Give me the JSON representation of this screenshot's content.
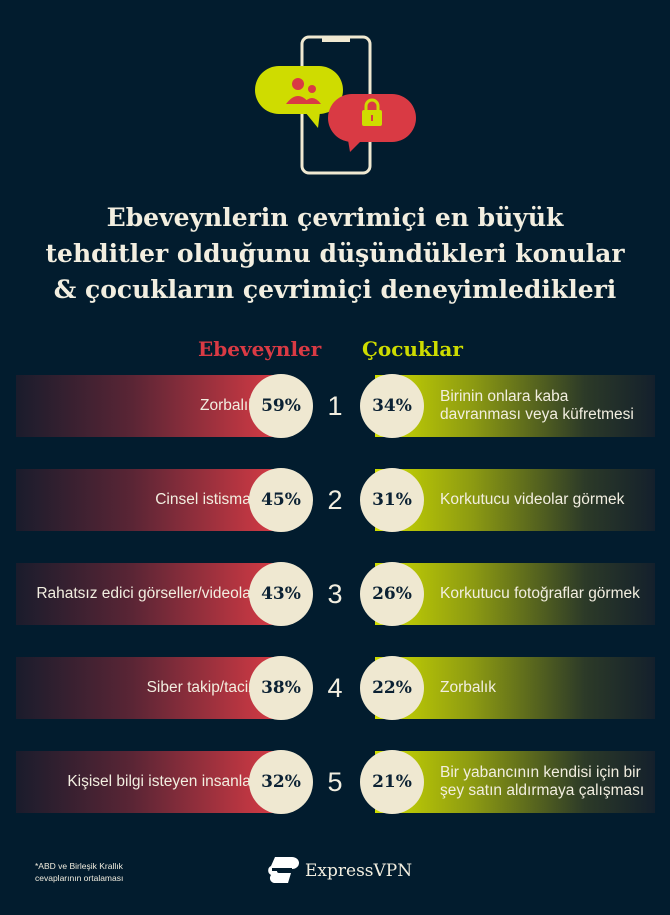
{
  "title": [
    "Ebeveynlerin çevrimiçi en büyük",
    "tehditler olduğunu düşündükleri konular",
    "& çocukların çevrimiçi deneyimledikleri"
  ],
  "columns": {
    "left": "Ebeveynler",
    "right": "Çocuklar"
  },
  "colors": {
    "background": "#021c2e",
    "parents": "#d93a44",
    "children": "#cddc00",
    "circle": "#efe8d1"
  },
  "rows": [
    {
      "rank": "1",
      "parent_label": "Zorbalık",
      "parent_value": "59%",
      "child_value": "34%",
      "child_label": "Birinin onlara kaba davranması veya küfretmesi"
    },
    {
      "rank": "2",
      "parent_label": "Cinsel istismar",
      "parent_value": "45%",
      "child_value": "31%",
      "child_label": "Korkutucu videolar görmek"
    },
    {
      "rank": "3",
      "parent_label": "Rahatsız edici görseller/videolar",
      "parent_value": "43%",
      "child_value": "26%",
      "child_label": "Korkutucu fotoğraflar görmek"
    },
    {
      "rank": "4",
      "parent_label": "Siber takip/taciz",
      "parent_value": "38%",
      "child_value": "22%",
      "child_label": "Zorbalık"
    },
    {
      "rank": "5",
      "parent_label": "Kişisel bilgi isteyen insanlar",
      "parent_value": "32%",
      "child_value": "21%",
      "child_label": "Bir yabancının kendisi için bir şey satın aldırmaya çalışması"
    }
  ],
  "footnote": [
    "*ABD ve Birleşik Krallık",
    "cevaplarının ortalaması"
  ],
  "brand": "ExpressVPN",
  "icons": [
    "phone-icon",
    "people-chat-bubble-icon",
    "lock-chat-bubble-icon",
    "expressvpn-logo-icon"
  ]
}
